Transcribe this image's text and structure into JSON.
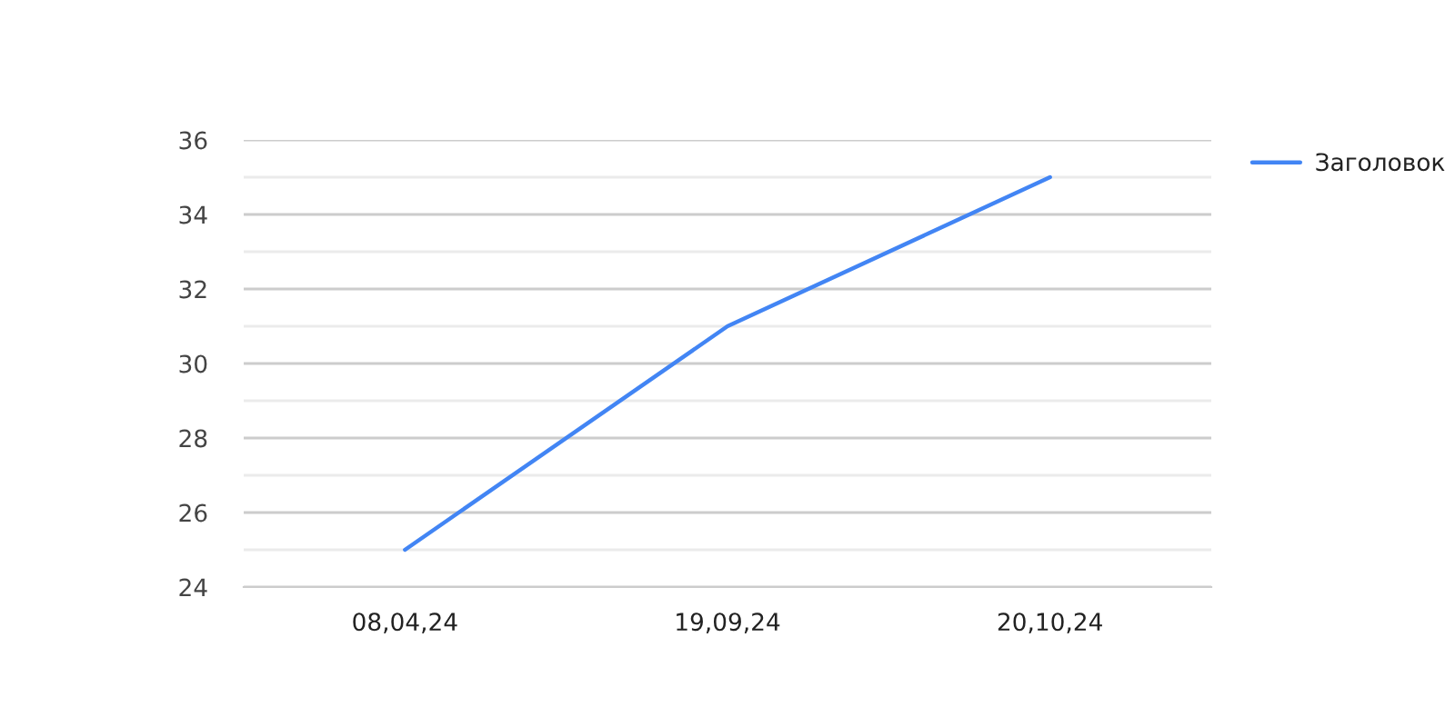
{
  "chart_data": {
    "type": "line",
    "categories": [
      "08,04,24",
      "19,09,24",
      "20,10,24"
    ],
    "series": [
      {
        "name": "Заголовок",
        "color": "#4285f4",
        "values": [
          25,
          31,
          35
        ]
      }
    ],
    "ylim": [
      24,
      36
    ],
    "yticks": [
      24,
      {
        "value": 25,
        "label": null
      },
      26,
      {
        "value": 27,
        "label": null
      },
      28,
      {
        "value": 29,
        "label": null
      },
      30,
      {
        "value": 31,
        "label": null
      },
      32,
      {
        "value": 33,
        "label": null
      },
      34,
      {
        "value": 35,
        "label": null
      },
      36
    ],
    "grid": "y",
    "legend": "right",
    "marker": "none",
    "line_style": "solid"
  }
}
